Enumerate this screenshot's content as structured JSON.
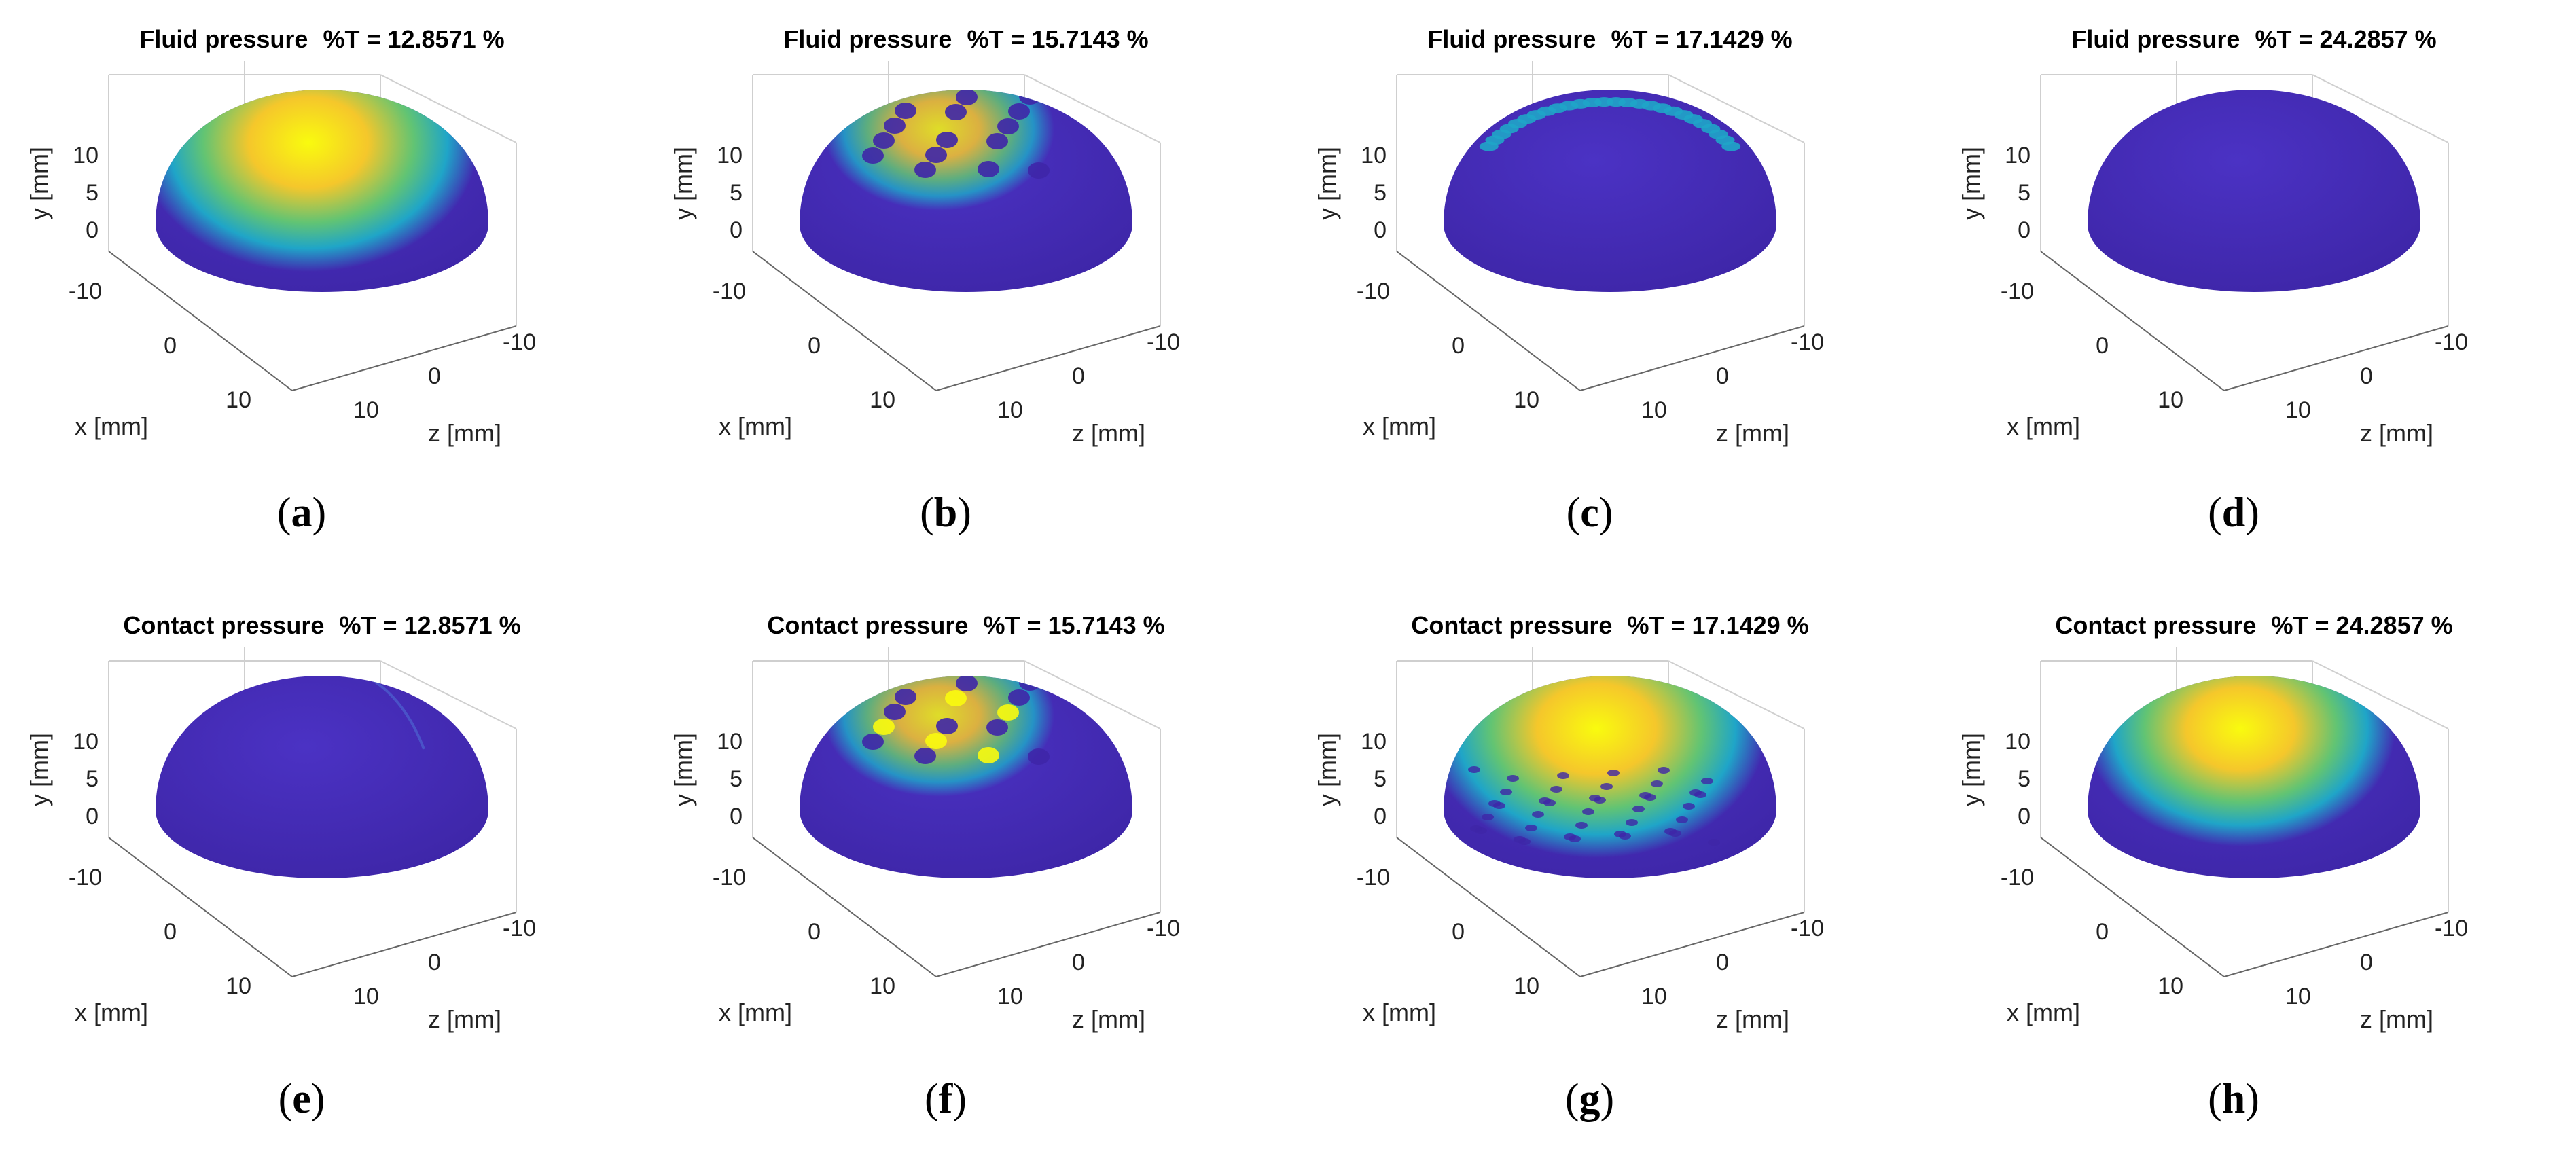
{
  "figure": {
    "panels": [
      {
        "id": "a",
        "caption_letter": "a",
        "quantity": "Fluid pressure",
        "percent_t": "%T = 12.8571 %"
      },
      {
        "id": "b",
        "caption_letter": "b",
        "quantity": "Fluid pressure",
        "percent_t": "%T = 15.7143 %"
      },
      {
        "id": "c",
        "caption_letter": "c",
        "quantity": "Fluid pressure",
        "percent_t": "%T = 17.1429 %"
      },
      {
        "id": "d",
        "caption_letter": "d",
        "quantity": "Fluid pressure",
        "percent_t": "%T = 24.2857 %"
      },
      {
        "id": "e",
        "caption_letter": "e",
        "quantity": "Contact pressure",
        "percent_t": "%T = 12.8571 %"
      },
      {
        "id": "f",
        "caption_letter": "f",
        "quantity": "Contact pressure",
        "percent_t": "%T = 15.7143 %"
      },
      {
        "id": "g",
        "caption_letter": "g",
        "quantity": "Contact pressure",
        "percent_t": "%T = 17.1429 %"
      },
      {
        "id": "h",
        "caption_letter": "h",
        "quantity": "Contact pressure",
        "percent_t": "%T = 24.2857 %"
      }
    ]
  },
  "chart_data": [
    {
      "type": "heatmap",
      "surface": "hemisphere",
      "title": "Fluid pressure  %T = 12.8571 %",
      "xlabel": "x [mm]",
      "ylabel": "y [mm]",
      "zlabel": "z [mm]",
      "x_ticks": [
        "-10",
        "0",
        "10"
      ],
      "y_ticks": [
        "0",
        "5",
        "10"
      ],
      "z_ticks": [
        "10",
        "0",
        "-10"
      ],
      "colormap": "parula",
      "pattern": "smooth",
      "peak_intensity": 1.0,
      "colors": {
        "low": "#3e26a8",
        "mid": "#1fa5c8",
        "high": "#f9fb0e"
      }
    },
    {
      "type": "heatmap",
      "surface": "hemisphere",
      "title": "Fluid pressure  %T = 15.7143 %",
      "xlabel": "x [mm]",
      "ylabel": "y [mm]",
      "zlabel": "z [mm]",
      "x_ticks": [
        "-10",
        "0",
        "10"
      ],
      "y_ticks": [
        "0",
        "5",
        "10"
      ],
      "z_ticks": [
        "10",
        "0",
        "-10"
      ],
      "colormap": "parula",
      "pattern": "patchy",
      "peak_intensity": 0.85,
      "colors": {
        "low": "#3e26a8",
        "mid": "#1fa5c8",
        "high": "#f9fb0e"
      }
    },
    {
      "type": "heatmap",
      "surface": "hemisphere",
      "title": "Fluid pressure  %T = 17.1429 %",
      "xlabel": "x [mm]",
      "ylabel": "y [mm]",
      "zlabel": "z [mm]",
      "x_ticks": [
        "-10",
        "0",
        "10"
      ],
      "y_ticks": [
        "0",
        "5",
        "10"
      ],
      "z_ticks": [
        "10",
        "0",
        "-10"
      ],
      "colormap": "parula",
      "pattern": "ring",
      "peak_intensity": 0.45,
      "colors": {
        "low": "#3e26a8",
        "mid": "#1fa5c8",
        "high": "#f9fb0e"
      }
    },
    {
      "type": "heatmap",
      "surface": "hemisphere",
      "title": "Fluid pressure  %T = 24.2857 %",
      "xlabel": "x [mm]",
      "ylabel": "y [mm]",
      "zlabel": "z [mm]",
      "x_ticks": [
        "-10",
        "0",
        "10"
      ],
      "y_ticks": [
        "0",
        "5",
        "10"
      ],
      "z_ticks": [
        "10",
        "0",
        "-10"
      ],
      "colormap": "parula",
      "pattern": "none",
      "peak_intensity": 0.0,
      "colors": {
        "low": "#3e26a8",
        "mid": "#1fa5c8",
        "high": "#f9fb0e"
      }
    },
    {
      "type": "heatmap",
      "surface": "hemisphere",
      "title": "Contact pressure  %T = 12.8571 %",
      "xlabel": "x [mm]",
      "ylabel": "y [mm]",
      "zlabel": "z [mm]",
      "x_ticks": [
        "-10",
        "0",
        "10"
      ],
      "y_ticks": [
        "0",
        "5",
        "10"
      ],
      "z_ticks": [
        "10",
        "0",
        "-10"
      ],
      "colormap": "parula",
      "pattern": "faint",
      "peak_intensity": 0.05,
      "colors": {
        "low": "#3e26a8",
        "mid": "#1fa5c8",
        "high": "#f9fb0e"
      }
    },
    {
      "type": "heatmap",
      "surface": "hemisphere",
      "title": "Contact pressure  %T = 15.7143 %",
      "xlabel": "x [mm]",
      "ylabel": "y [mm]",
      "zlabel": "z [mm]",
      "x_ticks": [
        "-10",
        "0",
        "10"
      ],
      "y_ticks": [
        "0",
        "5",
        "10"
      ],
      "z_ticks": [
        "10",
        "0",
        "-10"
      ],
      "colormap": "parula",
      "pattern": "spots",
      "peak_intensity": 0.9,
      "colors": {
        "low": "#3e26a8",
        "mid": "#1fa5c8",
        "high": "#f9fb0e"
      }
    },
    {
      "type": "heatmap",
      "surface": "hemisphere",
      "title": "Contact pressure  %T = 17.1429 %",
      "xlabel": "x [mm]",
      "ylabel": "y [mm]",
      "zlabel": "z [mm]",
      "x_ticks": [
        "-10",
        "0",
        "10"
      ],
      "y_ticks": [
        "0",
        "5",
        "10"
      ],
      "z_ticks": [
        "10",
        "0",
        "-10"
      ],
      "colormap": "parula",
      "pattern": "smooth-speckled",
      "peak_intensity": 1.0,
      "colors": {
        "low": "#3e26a8",
        "mid": "#1fa5c8",
        "high": "#f9fb0e"
      }
    },
    {
      "type": "heatmap",
      "surface": "hemisphere",
      "title": "Contact pressure  %T = 24.2857 %",
      "xlabel": "x [mm]",
      "ylabel": "y [mm]",
      "zlabel": "z [mm]",
      "x_ticks": [
        "-10",
        "0",
        "10"
      ],
      "y_ticks": [
        "0",
        "5",
        "10"
      ],
      "z_ticks": [
        "10",
        "0",
        "-10"
      ],
      "colormap": "parula",
      "pattern": "smooth",
      "peak_intensity": 0.9,
      "colors": {
        "low": "#3e26a8",
        "mid": "#1fa5c8",
        "high": "#f9fb0e"
      }
    }
  ]
}
